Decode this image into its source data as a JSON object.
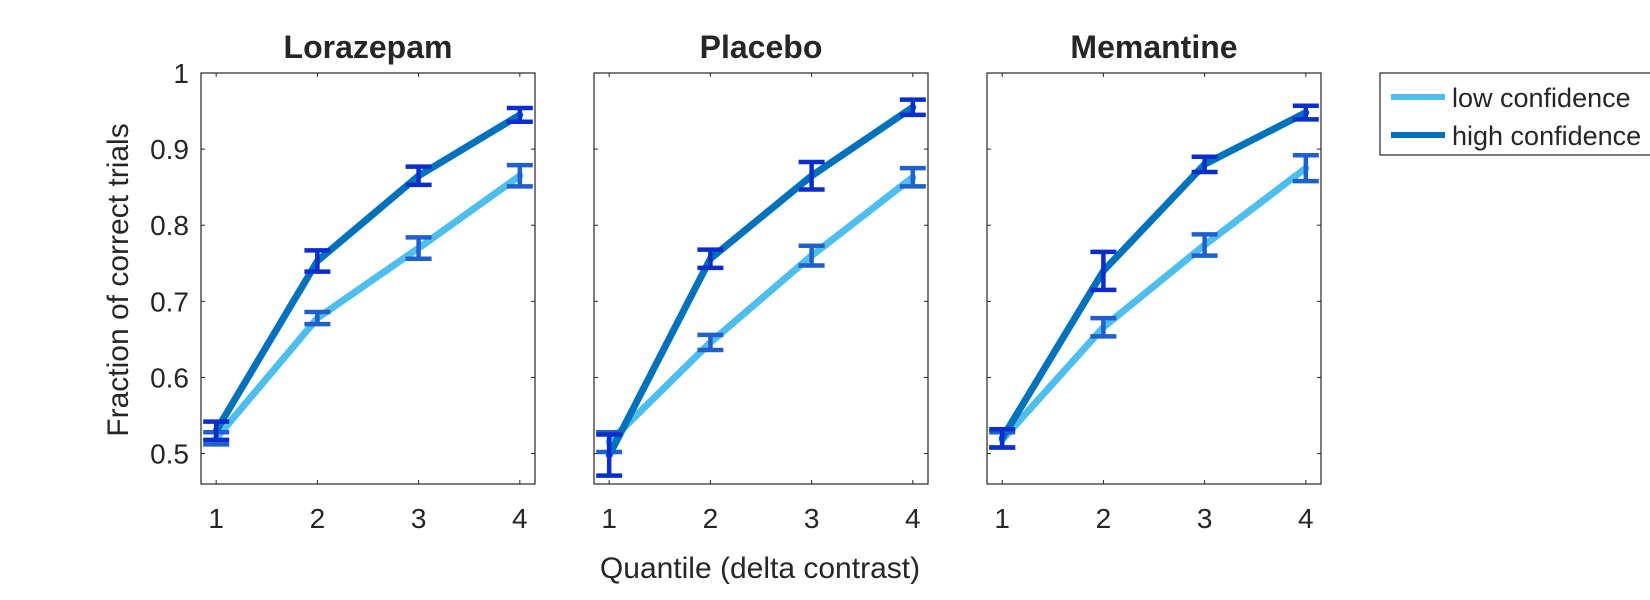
{
  "figure": {
    "xlabel": "Quantile (delta contrast)",
    "ylabel": "Fraction of correct trials"
  },
  "legend": {
    "position": "right",
    "items": [
      {
        "label": "low confidence",
        "color": "#4dbeee"
      },
      {
        "label": "high confidence",
        "color": "#0072bd"
      }
    ]
  },
  "colors": {
    "low_line": "#4dbeee",
    "high_line": "#0072bd",
    "low_errorbar": "#2060cc",
    "high_errorbar": "#0a2ecc",
    "axis": "#262626"
  },
  "chart_data": [
    {
      "type": "line",
      "title": "Lorazepam",
      "x": [
        1,
        2,
        3,
        4
      ],
      "xlim": [
        0.85,
        4.15
      ],
      "ylim": [
        0.46,
        1.0
      ],
      "xticks": [
        "1",
        "2",
        "3",
        "4"
      ],
      "yticks": [
        "0.5",
        "0.6",
        "0.7",
        "0.8",
        "0.9",
        "1"
      ],
      "series": [
        {
          "name": "low confidence",
          "values": [
            0.52,
            0.678,
            0.77,
            0.865
          ],
          "errors": [
            0.008,
            0.008,
            0.014,
            0.014
          ]
        },
        {
          "name": "high confidence",
          "values": [
            0.53,
            0.753,
            0.865,
            0.945
          ],
          "errors": [
            0.012,
            0.014,
            0.012,
            0.009
          ]
        }
      ]
    },
    {
      "type": "line",
      "title": "Placebo",
      "x": [
        1,
        2,
        3,
        4
      ],
      "xlim": [
        0.85,
        4.15
      ],
      "ylim": [
        0.46,
        1.0
      ],
      "xticks": [
        "1",
        "2",
        "3",
        "4"
      ],
      "yticks": [
        "0.5",
        "0.6",
        "0.7",
        "0.8",
        "0.9",
        "1"
      ],
      "series": [
        {
          "name": "low confidence",
          "values": [
            0.515,
            0.646,
            0.76,
            0.863
          ],
          "errors": [
            0.013,
            0.01,
            0.013,
            0.012
          ]
        },
        {
          "name": "high confidence",
          "values": [
            0.498,
            0.756,
            0.865,
            0.955
          ],
          "errors": [
            0.027,
            0.012,
            0.018,
            0.01
          ]
        }
      ]
    },
    {
      "type": "line",
      "title": "Memantine",
      "x": [
        1,
        2,
        3,
        4
      ],
      "xlim": [
        0.85,
        4.15
      ],
      "ylim": [
        0.46,
        1.0
      ],
      "xticks": [
        "1",
        "2",
        "3",
        "4"
      ],
      "yticks": [
        "0.5",
        "0.6",
        "0.7",
        "0.8",
        "0.9",
        "1"
      ],
      "series": [
        {
          "name": "low confidence",
          "values": [
            0.518,
            0.666,
            0.774,
            0.875
          ],
          "errors": [
            0.01,
            0.012,
            0.014,
            0.017
          ]
        },
        {
          "name": "high confidence",
          "values": [
            0.52,
            0.74,
            0.88,
            0.948
          ],
          "errors": [
            0.012,
            0.025,
            0.01,
            0.009
          ]
        }
      ]
    }
  ]
}
